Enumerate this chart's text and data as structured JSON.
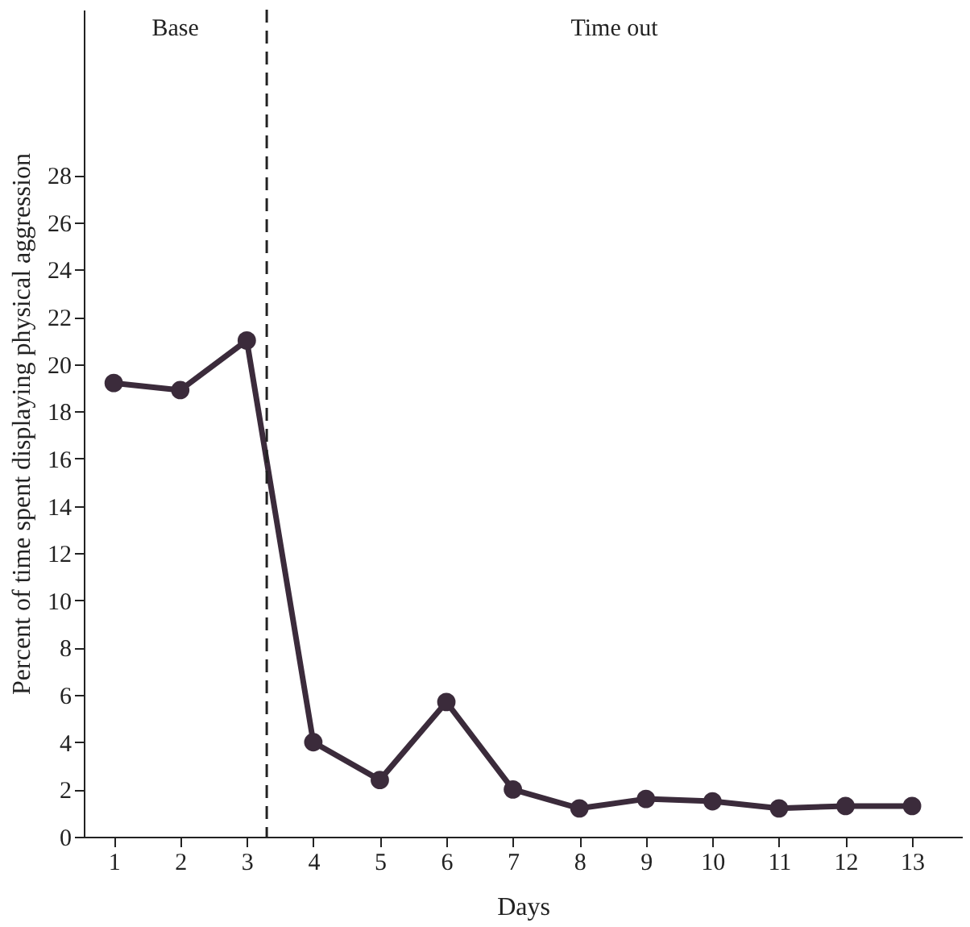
{
  "chart_data": {
    "type": "line",
    "xlabel": "Days",
    "ylabel": "Percent of time spent displaying physical aggression",
    "x": [
      1,
      2,
      3,
      4,
      5,
      6,
      7,
      8,
      9,
      10,
      11,
      12,
      13
    ],
    "series": [
      {
        "color": "#3b2b3b",
        "values": [
          19.2,
          18.9,
          21.0,
          4.0,
          2.4,
          5.7,
          2.0,
          1.2,
          1.6,
          1.5,
          1.2,
          1.3,
          1.3
        ]
      }
    ],
    "xlim": [
      0.55,
      13.75
    ],
    "xticks": [
      1,
      2,
      3,
      4,
      5,
      6,
      7,
      8,
      9,
      10,
      11,
      12,
      13
    ],
    "ylim": [
      0,
      35
    ],
    "yticks": [
      0,
      2,
      4,
      6,
      8,
      10,
      12,
      14,
      16,
      18,
      20,
      22,
      24,
      26,
      28
    ],
    "grid": false,
    "marker": "circle",
    "line_style": "solid",
    "ref_lines": [
      {
        "axis": "x",
        "value": 3.3,
        "line_style": "dashed"
      }
    ],
    "annotations": [
      "Base",
      "Time out"
    ]
  }
}
